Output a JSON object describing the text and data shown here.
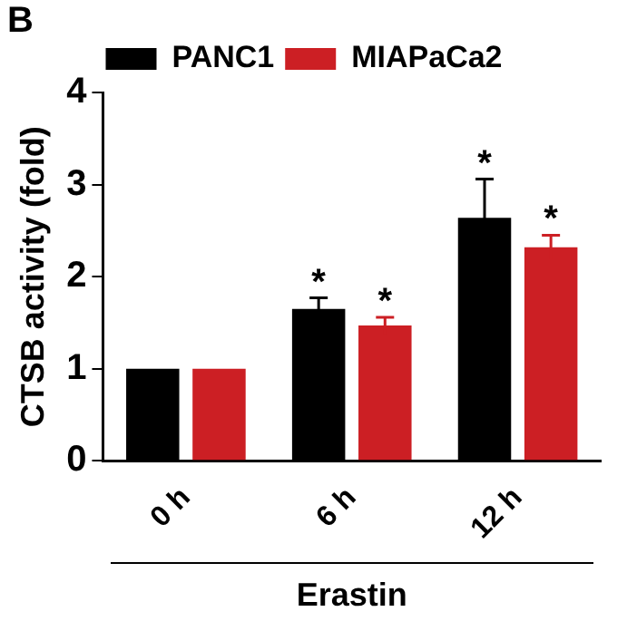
{
  "chart_data": {
    "type": "bar",
    "title": "B",
    "categories": [
      "0 h",
      "6 h",
      "12 h"
    ],
    "series": [
      {
        "name": "PANC1",
        "color": "#000000",
        "values": [
          1.0,
          1.65,
          2.64
        ],
        "errors": [
          null,
          0.12,
          0.42
        ]
      },
      {
        "name": "MIAPaCa2",
        "color": "#cc1f24",
        "values": [
          1.0,
          1.47,
          2.32
        ],
        "errors": [
          null,
          0.09,
          0.13
        ]
      }
    ],
    "xlabel": "Erastin",
    "ylabel": "CTSB activity (fold)",
    "ylim": [
      0,
      4
    ],
    "yticks": [
      0,
      1,
      2,
      3,
      4
    ],
    "grid": false,
    "legend": "top",
    "annotations": [
      "*",
      "*",
      "*",
      "*"
    ]
  }
}
